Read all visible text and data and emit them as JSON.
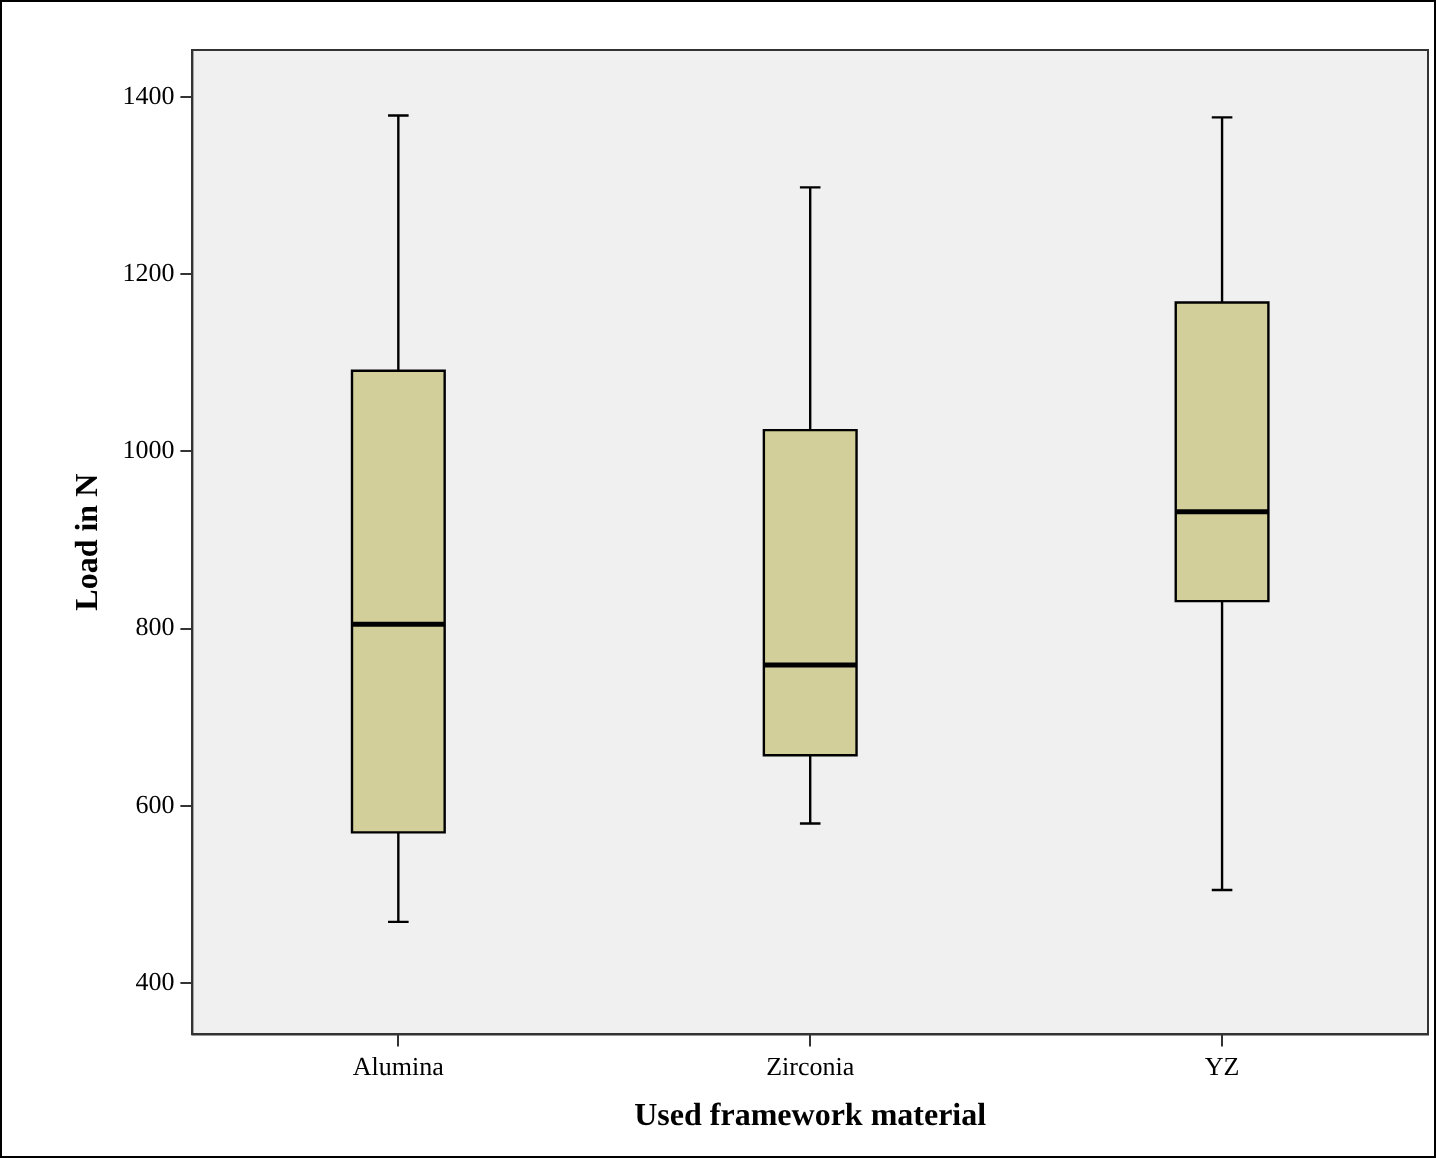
{
  "chart_data": {
    "type": "box",
    "xlabel": "Used framework material",
    "ylabel": "Load in N",
    "categories": [
      "Alumina",
      "Zirconia",
      "YZ"
    ],
    "boxes": [
      {
        "low": 469,
        "q1": 570,
        "median": 805,
        "q3": 1091,
        "high": 1379
      },
      {
        "low": 580,
        "q1": 657,
        "median": 759,
        "q3": 1024,
        "high": 1298
      },
      {
        "low": 505,
        "q1": 831,
        "median": 932,
        "q3": 1168,
        "high": 1377
      }
    ],
    "color": "#d3cf9a",
    "ylim": [
      342,
      1453
    ],
    "yticks": [
      400,
      600,
      800,
      1000,
      1200,
      1400
    ],
    "grid": false,
    "legend": false
  }
}
